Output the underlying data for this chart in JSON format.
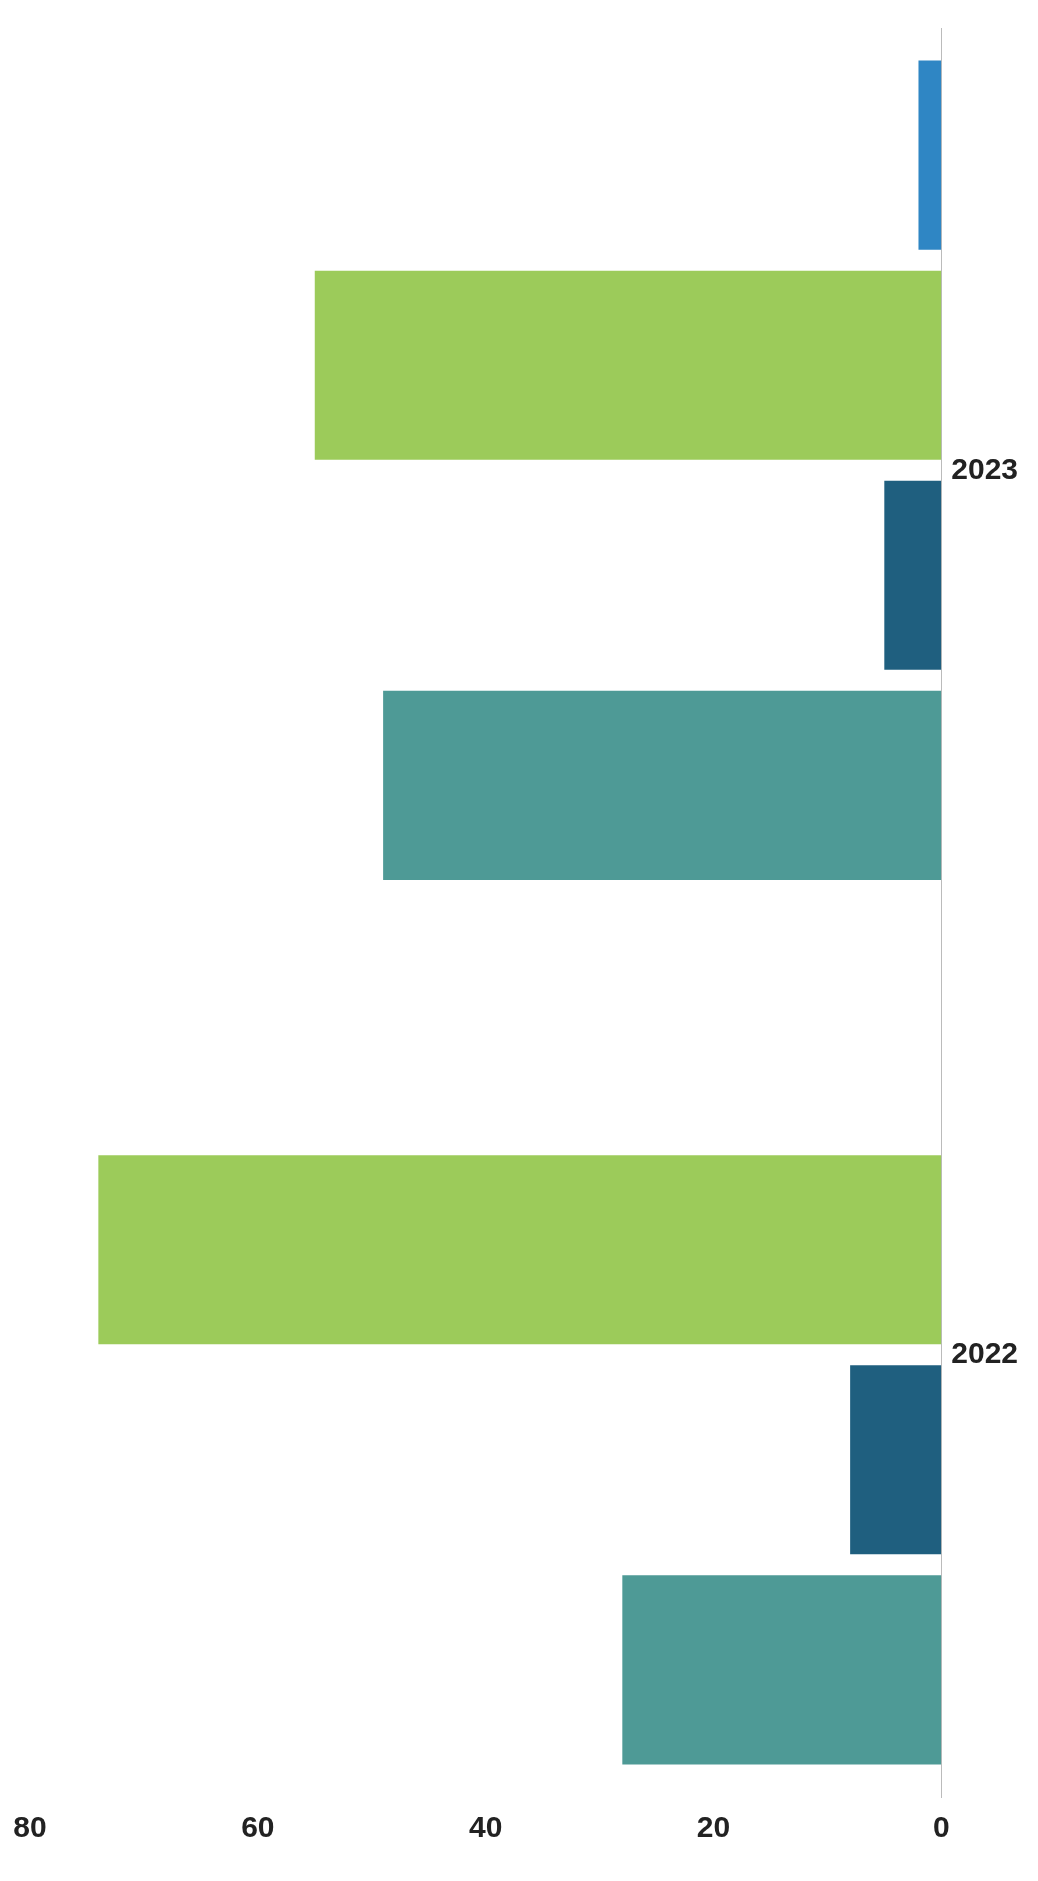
{
  "chart_data": {
    "type": "bar",
    "orientation": "horizontal",
    "categories": [
      "2023",
      "2022"
    ],
    "series": [
      {
        "color": "#2f86c4",
        "values": [
          2,
          0
        ]
      },
      {
        "color": "#9ccb5a",
        "values": [
          55,
          74
        ]
      },
      {
        "color": "#1f5f7f",
        "values": [
          5,
          8
        ]
      },
      {
        "color": "#4e9a96",
        "values": [
          49,
          28
        ]
      }
    ],
    "xlim": [
      80,
      0
    ],
    "xticks": [
      0,
      20,
      40,
      60,
      80
    ],
    "grid": false,
    "legend": false
  }
}
